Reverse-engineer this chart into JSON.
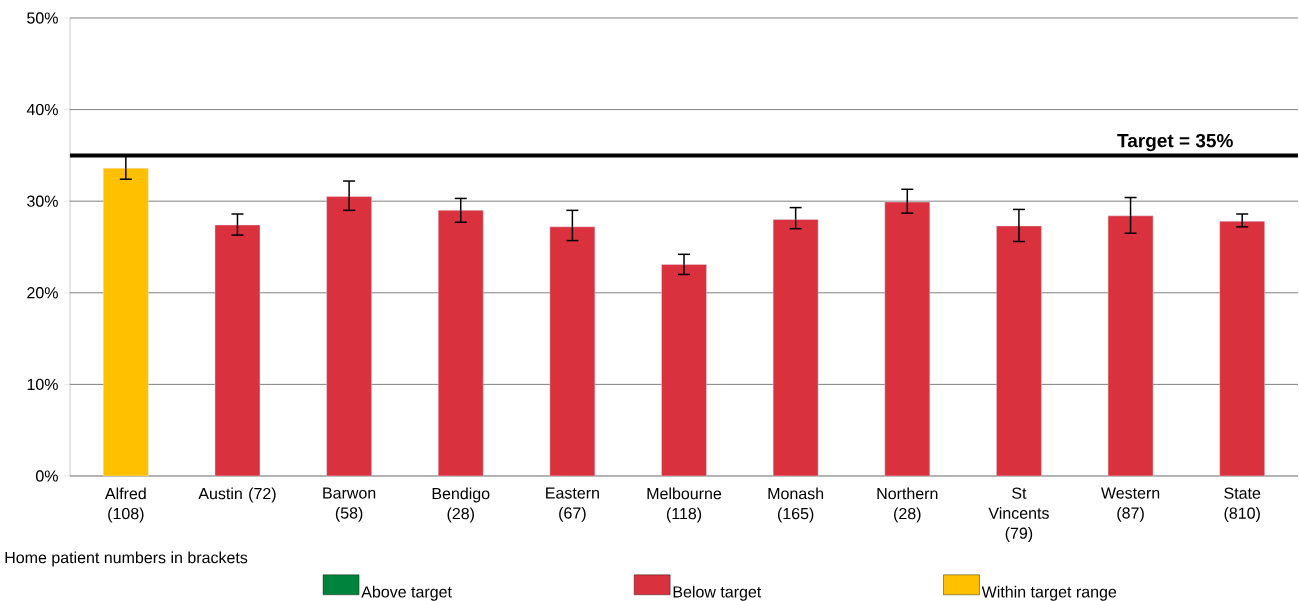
{
  "chart_data": {
    "type": "bar",
    "stacked": true,
    "categories": [
      "Alfred (108)",
      "Austin (72)",
      "Barwon (58)",
      "Bendigo (28)",
      "Eastern (67)",
      "Melbourne (118)",
      "Monash (165)",
      "Northern (28)",
      "St Vincents (79)",
      "Western (87)",
      "State (810)"
    ],
    "series": [
      {
        "name": "Above target",
        "color": "#00843d",
        "values": [
          null,
          null,
          null,
          null,
          null,
          null,
          null,
          null,
          null,
          null,
          null
        ],
        "errors": [
          null,
          null,
          null,
          null,
          null,
          null,
          null,
          null,
          null,
          null,
          null
        ]
      },
      {
        "name": "Below target",
        "color": "#d9323e",
        "values": [
          null,
          27.4,
          30.5,
          29.0,
          27.2,
          23.1,
          28.0,
          29.9,
          27.3,
          28.4,
          27.8
        ],
        "errors": [
          null,
          [
            26.3,
            28.6
          ],
          [
            29.0,
            32.2
          ],
          [
            27.7,
            30.3
          ],
          [
            25.7,
            29.0
          ],
          [
            22.0,
            24.2
          ],
          [
            27.0,
            29.3
          ],
          [
            28.7,
            31.3
          ],
          [
            25.6,
            29.1
          ],
          [
            26.5,
            30.4
          ],
          [
            27.2,
            28.6
          ]
        ]
      },
      {
        "name": "Within target range",
        "color": "#ffc000",
        "values": [
          33.6,
          null,
          null,
          null,
          null,
          null,
          null,
          null,
          null,
          null,
          null
        ],
        "errors": [
          [
            32.4,
            35.0
          ],
          null,
          null,
          null,
          null,
          null,
          null,
          null,
          null,
          null,
          null
        ]
      }
    ],
    "ylim": [
      0,
      50
    ],
    "yticks": [
      {
        "value": 0,
        "label": "0%"
      },
      {
        "value": 10,
        "label": "10%"
      },
      {
        "value": 20,
        "label": "20%"
      },
      {
        "value": 30,
        "label": "30%"
      },
      {
        "value": 40,
        "label": "40%"
      },
      {
        "value": 50,
        "label": "50%"
      }
    ],
    "grid": "y",
    "legend": "bottom",
    "ref_lines": [
      {
        "axis": "y",
        "value": 35,
        "label": "Target  = 35%",
        "color": "#000000"
      }
    ],
    "annotations": [
      "Home patient numbers in brackets"
    ]
  }
}
